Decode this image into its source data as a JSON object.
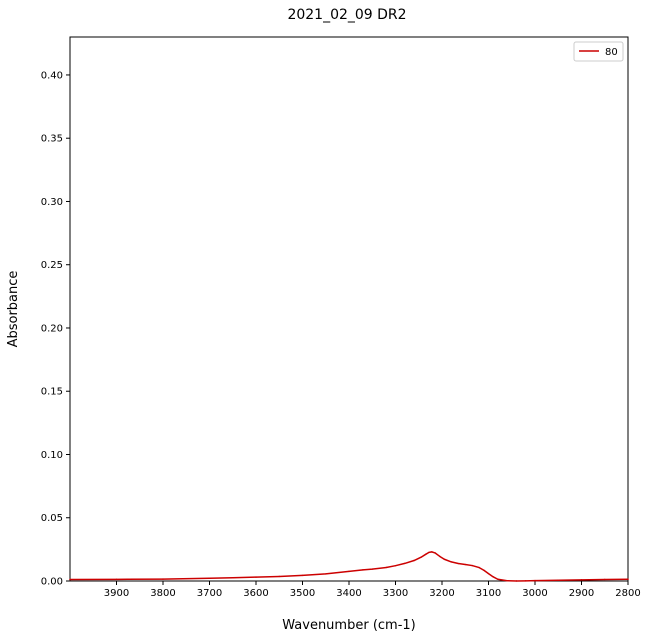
{
  "chart_data": {
    "type": "line",
    "title": "2021_02_09 DR2",
    "xlabel": "Wavenumber (cm-1)",
    "ylabel": "Absorbance",
    "xlim": [
      4000,
      2800
    ],
    "ylim": [
      0,
      0.43
    ],
    "x_reversed": true,
    "grid": false,
    "legend_position": "top-right",
    "x_ticks": [
      3900,
      3800,
      3700,
      3600,
      3500,
      3400,
      3300,
      3200,
      3100,
      3000,
      2900,
      2800
    ],
    "y_ticks": [
      0.0,
      0.05,
      0.1,
      0.15,
      0.2,
      0.25,
      0.3,
      0.35,
      0.4
    ],
    "y_tick_labels": [
      "0.00",
      "0.05",
      "0.10",
      "0.15",
      "0.20",
      "0.25",
      "0.30",
      "0.35",
      "0.40"
    ],
    "series": [
      {
        "name": "80",
        "color": "#cc0000",
        "x": [
          4000,
          3900,
          3800,
          3700,
          3650,
          3600,
          3550,
          3500,
          3450,
          3400,
          3370,
          3350,
          3320,
          3300,
          3280,
          3260,
          3245,
          3235,
          3228,
          3222,
          3215,
          3205,
          3195,
          3180,
          3165,
          3150,
          3135,
          3120,
          3110,
          3100,
          3090,
          3080,
          3060,
          3040,
          3020,
          3000,
          2950,
          2900,
          2850,
          2800
        ],
        "y": [
          0.0012,
          0.0013,
          0.0015,
          0.0022,
          0.0026,
          0.0031,
          0.0036,
          0.0044,
          0.0056,
          0.0076,
          0.0088,
          0.0094,
          0.0107,
          0.0121,
          0.0139,
          0.0162,
          0.0188,
          0.0211,
          0.0226,
          0.023,
          0.0222,
          0.0195,
          0.0172,
          0.0151,
          0.0138,
          0.013,
          0.0122,
          0.0106,
          0.0085,
          0.0058,
          0.0033,
          0.0014,
          0.0002,
          0.0,
          0.0001,
          0.0003,
          0.0006,
          0.0009,
          0.0012,
          0.0014
        ]
      }
    ]
  }
}
